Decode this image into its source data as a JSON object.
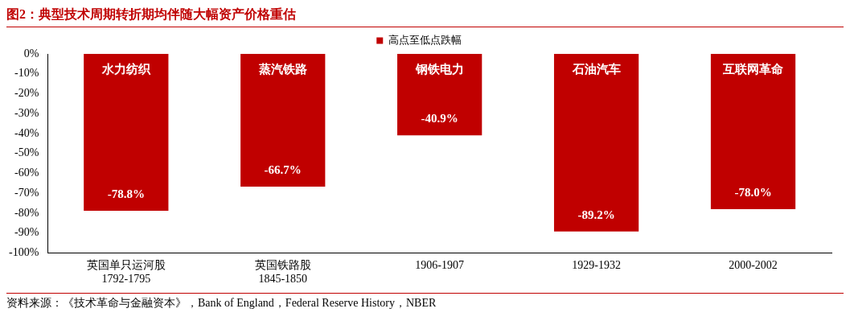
{
  "chart_data": {
    "type": "bar",
    "title": "图2：典型技术周期转折期均伴随大幅资产价格重估",
    "categories": [
      "英国单只运河股\n1792-1795",
      "英国铁路股\n1845-1850",
      "1906-1907",
      "1929-1932",
      "2000-2002"
    ],
    "series": [
      {
        "name": "高点至低点跌幅",
        "color": "#c00000",
        "values": [
          -78.8,
          -66.7,
          -40.9,
          -89.2,
          -78.0
        ],
        "value_labels": [
          "-78.8%",
          "-66.7%",
          "-40.9%",
          "-89.2%",
          "-78.0%"
        ]
      }
    ],
    "ylim": [
      -100,
      0
    ],
    "yticks": [
      {
        "value": 0,
        "label": "0%"
      },
      {
        "value": -10,
        "label": "-10%"
      },
      {
        "value": -20,
        "label": "-20%"
      },
      {
        "value": -30,
        "label": "-30%"
      },
      {
        "value": -40,
        "label": "-40%"
      },
      {
        "value": -50,
        "label": "-50%"
      },
      {
        "value": -60,
        "label": "-60%"
      },
      {
        "value": -70,
        "label": "-70%"
      },
      {
        "value": -80,
        "label": "-80%"
      },
      {
        "value": -90,
        "label": "-90%"
      },
      {
        "value": -100,
        "label": "-100%"
      }
    ],
    "grid": false,
    "legend": "top",
    "annotations": [
      "水力纺织",
      "蒸汽铁路",
      "钢铁电力",
      "石油汽车",
      "互联网革命",
      "资料来源：《技术革命与金融资本》，Bank of England，Federal Reserve History，NBER"
    ]
  }
}
